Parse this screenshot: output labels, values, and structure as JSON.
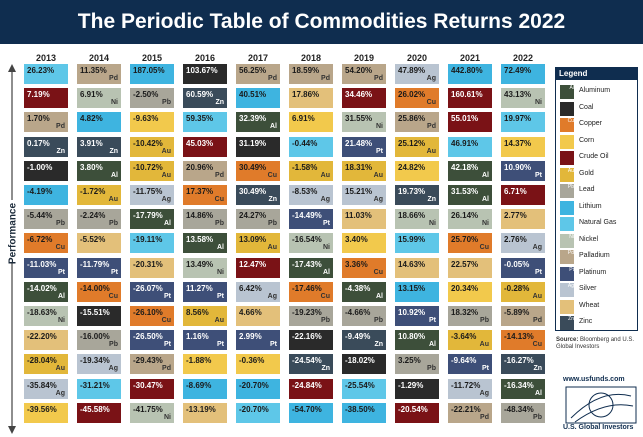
{
  "title": "The Periodic Table of Commodities Returns 2022",
  "axis_label": "Performance",
  "commodities": {
    "Aluminum": {
      "symbol": "Al",
      "color": "#3d4f3a",
      "icon": "aluminum-icon"
    },
    "Coal": {
      "symbol": "",
      "color": "#2a2a2a",
      "icon": "coal-icon"
    },
    "Copper": {
      "symbol": "Cu",
      "color": "#e07b2a",
      "icon": "copper-icon"
    },
    "Corn": {
      "symbol": "",
      "color": "#f2c94c",
      "icon": "corn-icon"
    },
    "Crude Oil": {
      "symbol": "",
      "color": "#7a1216",
      "icon": "oil-drop-icon"
    },
    "Gold": {
      "symbol": "Au",
      "color": "#e2b73a",
      "icon": "gold-icon"
    },
    "Lead": {
      "symbol": "Pb",
      "color": "#a8a69a",
      "icon": "lead-icon"
    },
    "Lithium": {
      "symbol": "",
      "color": "#3eb4e0",
      "icon": "battery-icon"
    },
    "Natural Gas": {
      "symbol": "",
      "color": "#5ec7e8",
      "icon": "flame-icon"
    },
    "Nickel": {
      "symbol": "Ni",
      "color": "#b8c3b2",
      "icon": "nickel-icon"
    },
    "Palladium": {
      "symbol": "Pd",
      "color": "#b9a68a",
      "icon": "palladium-icon"
    },
    "Platinum": {
      "symbol": "Pt",
      "color": "#3e4f78",
      "icon": "platinum-icon"
    },
    "Silver": {
      "symbol": "Ag",
      "color": "#b9c4d1",
      "icon": "silver-icon"
    },
    "Wheat": {
      "symbol": "",
      "color": "#e3c07a",
      "icon": "wheat-icon"
    },
    "Zinc": {
      "symbol": "Zn",
      "color": "#3a4b5a",
      "icon": "zinc-icon"
    }
  },
  "legend": {
    "title": "Legend",
    "items": [
      "Aluminum",
      "Coal",
      "Copper",
      "Corn",
      "Crude Oil",
      "Gold",
      "Lead",
      "Lithium",
      "Natural Gas",
      "Nickel",
      "Palladium",
      "Platinum",
      "Silver",
      "Wheat",
      "Zinc"
    ]
  },
  "source": {
    "label": "Source:",
    "text": "Bloomberg and U.S. Global Investors"
  },
  "url": "www.usfunds.com",
  "company": "U.S. Global Investors",
  "chart_data": {
    "type": "table",
    "title": "The Periodic Table of Commodities Returns 2022",
    "ylabel": "Performance",
    "years": [
      "2013",
      "2014",
      "2015",
      "2016",
      "2017",
      "2018",
      "2019",
      "2020",
      "2021",
      "2022"
    ],
    "columns": [
      {
        "year": "2013",
        "cells": [
          {
            "c": "Natural Gas",
            "v": "26.23%"
          },
          {
            "c": "Crude Oil",
            "v": "7.19%"
          },
          {
            "c": "Palladium",
            "v": "1.70%"
          },
          {
            "c": "Zinc",
            "v": "0.17%"
          },
          {
            "c": "Coal",
            "v": "-1.00%"
          },
          {
            "c": "Lithium",
            "v": "-4.19%"
          },
          {
            "c": "Lead",
            "v": "-5.44%"
          },
          {
            "c": "Copper",
            "v": "-6.72%"
          },
          {
            "c": "Platinum",
            "v": "-11.03%"
          },
          {
            "c": "Aluminum",
            "v": "-14.02%"
          },
          {
            "c": "Nickel",
            "v": "-18.63%"
          },
          {
            "c": "Wheat",
            "v": "-22.20%"
          },
          {
            "c": "Gold",
            "v": "-28.04%"
          },
          {
            "c": "Silver",
            "v": "-35.84%"
          },
          {
            "c": "Corn",
            "v": "-39.56%"
          }
        ]
      },
      {
        "year": "2014",
        "cells": [
          {
            "c": "Palladium",
            "v": "11.35%"
          },
          {
            "c": "Nickel",
            "v": "6.91%"
          },
          {
            "c": "Lithium",
            "v": "4.82%"
          },
          {
            "c": "Zinc",
            "v": "3.91%"
          },
          {
            "c": "Aluminum",
            "v": "3.80%"
          },
          {
            "c": "Gold",
            "v": "-1.72%"
          },
          {
            "c": "Lead",
            "v": "-2.24%"
          },
          {
            "c": "Wheat",
            "v": "-5.52%"
          },
          {
            "c": "Platinum",
            "v": "-11.79%"
          },
          {
            "c": "Copper",
            "v": "-14.00%"
          },
          {
            "c": "Coal",
            "v": "-15.51%"
          },
          {
            "c": "Lead",
            "v": "-16.00%"
          },
          {
            "c": "Silver",
            "v": "-19.34%"
          },
          {
            "c": "Natural Gas",
            "v": "-31.21%"
          },
          {
            "c": "Crude Oil",
            "v": "-45.58%"
          }
        ]
      },
      {
        "year": "2015",
        "cells": [
          {
            "c": "Lithium",
            "v": "187.05%"
          },
          {
            "c": "Lead",
            "v": "-2.50%"
          },
          {
            "c": "Corn",
            "v": "-9.63%"
          },
          {
            "c": "Gold",
            "v": "-10.42%"
          },
          {
            "c": "Gold",
            "v": "-10.72%"
          },
          {
            "c": "Silver",
            "v": "-11.75%"
          },
          {
            "c": "Aluminum",
            "v": "-17.79%"
          },
          {
            "c": "Natural Gas",
            "v": "-19.11%"
          },
          {
            "c": "Wheat",
            "v": "-20.31%"
          },
          {
            "c": "Platinum",
            "v": "-26.07%"
          },
          {
            "c": "Copper",
            "v": "-26.10%"
          },
          {
            "c": "Platinum",
            "v": "-26.50%"
          },
          {
            "c": "Palladium",
            "v": "-29.43%"
          },
          {
            "c": "Crude Oil",
            "v": "-30.47%"
          },
          {
            "c": "Nickel",
            "v": "-41.75%"
          }
        ]
      },
      {
        "year": "2016",
        "cells": [
          {
            "c": "Coal",
            "v": "103.67%"
          },
          {
            "c": "Zinc",
            "v": "60.59%"
          },
          {
            "c": "Natural Gas",
            "v": "59.35%"
          },
          {
            "c": "Crude Oil",
            "v": "45.03%"
          },
          {
            "c": "Palladium",
            "v": "20.96%"
          },
          {
            "c": "Copper",
            "v": "17.37%"
          },
          {
            "c": "Lead",
            "v": "14.86%"
          },
          {
            "c": "Aluminum",
            "v": "13.58%"
          },
          {
            "c": "Nickel",
            "v": "13.49%"
          },
          {
            "c": "Platinum",
            "v": "11.27%"
          },
          {
            "c": "Gold",
            "v": "8.56%"
          },
          {
            "c": "Platinum",
            "v": "1.16%"
          },
          {
            "c": "Corn",
            "v": "-1.88%"
          },
          {
            "c": "Lithium",
            "v": "-8.69%"
          },
          {
            "c": "Wheat",
            "v": "-13.19%"
          }
        ]
      },
      {
        "year": "2017",
        "cells": [
          {
            "c": "Palladium",
            "v": "56.25%"
          },
          {
            "c": "Lithium",
            "v": "40.51%"
          },
          {
            "c": "Aluminum",
            "v": "32.39%"
          },
          {
            "c": "Coal",
            "v": "31.19%"
          },
          {
            "c": "Copper",
            "v": "30.49%"
          },
          {
            "c": "Zinc",
            "v": "30.49%"
          },
          {
            "c": "Lead",
            "v": "24.27%"
          },
          {
            "c": "Gold",
            "v": "13.09%"
          },
          {
            "c": "Crude Oil",
            "v": "12.47%"
          },
          {
            "c": "Silver",
            "v": "6.42%"
          },
          {
            "c": "Wheat",
            "v": "4.66%"
          },
          {
            "c": "Platinum",
            "v": "2.99%"
          },
          {
            "c": "Corn",
            "v": "-0.36%"
          },
          {
            "c": "Lithium",
            "v": "-20.70%"
          },
          {
            "c": "Natural Gas",
            "v": "-20.70%"
          }
        ]
      },
      {
        "year": "2018",
        "cells": [
          {
            "c": "Palladium",
            "v": "18.59%"
          },
          {
            "c": "Wheat",
            "v": "17.86%"
          },
          {
            "c": "Corn",
            "v": "6.91%"
          },
          {
            "c": "Natural Gas",
            "v": "-0.44%"
          },
          {
            "c": "Gold",
            "v": "-1.58%"
          },
          {
            "c": "Silver",
            "v": "-8.53%"
          },
          {
            "c": "Platinum",
            "v": "-14.49%"
          },
          {
            "c": "Nickel",
            "v": "-16.54%"
          },
          {
            "c": "Aluminum",
            "v": "-17.43%"
          },
          {
            "c": "Copper",
            "v": "-17.46%"
          },
          {
            "c": "Lead",
            "v": "-19.23%"
          },
          {
            "c": "Coal",
            "v": "-22.16%"
          },
          {
            "c": "Zinc",
            "v": "-24.54%"
          },
          {
            "c": "Crude Oil",
            "v": "-24.84%"
          },
          {
            "c": "Lithium",
            "v": "-54.70%"
          }
        ]
      },
      {
        "year": "2019",
        "cells": [
          {
            "c": "Palladium",
            "v": "54.20%"
          },
          {
            "c": "Crude Oil",
            "v": "34.46%"
          },
          {
            "c": "Nickel",
            "v": "31.55%"
          },
          {
            "c": "Platinum",
            "v": "21.48%"
          },
          {
            "c": "Gold",
            "v": "18.31%"
          },
          {
            "c": "Silver",
            "v": "15.21%"
          },
          {
            "c": "Wheat",
            "v": "11.03%"
          },
          {
            "c": "Corn",
            "v": "3.40%"
          },
          {
            "c": "Copper",
            "v": "3.36%"
          },
          {
            "c": "Aluminum",
            "v": "-4.38%"
          },
          {
            "c": "Lead",
            "v": "-4.66%"
          },
          {
            "c": "Zinc",
            "v": "-9.49%"
          },
          {
            "c": "Coal",
            "v": "-18.02%"
          },
          {
            "c": "Natural Gas",
            "v": "-25.54%"
          },
          {
            "c": "Lithium",
            "v": "-38.50%"
          }
        ]
      },
      {
        "year": "2020",
        "cells": [
          {
            "c": "Silver",
            "v": "47.89%"
          },
          {
            "c": "Copper",
            "v": "26.02%"
          },
          {
            "c": "Palladium",
            "v": "25.86%"
          },
          {
            "c": "Gold",
            "v": "25.12%"
          },
          {
            "c": "Corn",
            "v": "24.82%"
          },
          {
            "c": "Zinc",
            "v": "19.73%"
          },
          {
            "c": "Nickel",
            "v": "18.66%"
          },
          {
            "c": "Natural Gas",
            "v": "15.99%"
          },
          {
            "c": "Wheat",
            "v": "14.63%"
          },
          {
            "c": "Lithium",
            "v": "13.15%"
          },
          {
            "c": "Platinum",
            "v": "10.92%"
          },
          {
            "c": "Aluminum",
            "v": "10.80%"
          },
          {
            "c": "Lead",
            "v": "3.25%"
          },
          {
            "c": "Coal",
            "v": "-1.29%"
          },
          {
            "c": "Crude Oil",
            "v": "-20.54%"
          }
        ]
      },
      {
        "year": "2021",
        "cells": [
          {
            "c": "Lithium",
            "v": "442.80%"
          },
          {
            "c": "Crude Oil",
            "v": "160.61%"
          },
          {
            "c": "Crude Oil",
            "v": "55.01%"
          },
          {
            "c": "Natural Gas",
            "v": "46.91%"
          },
          {
            "c": "Aluminum",
            "v": "42.18%"
          },
          {
            "c": "Aluminum",
            "v": "31.53%"
          },
          {
            "c": "Nickel",
            "v": "26.14%"
          },
          {
            "c": "Copper",
            "v": "25.70%"
          },
          {
            "c": "Wheat",
            "v": "22.57%"
          },
          {
            "c": "Corn",
            "v": "20.34%"
          },
          {
            "c": "Lead",
            "v": "18.32%"
          },
          {
            "c": "Gold",
            "v": "-3.64%"
          },
          {
            "c": "Platinum",
            "v": "-9.64%"
          },
          {
            "c": "Silver",
            "v": "-11.72%"
          },
          {
            "c": "Palladium",
            "v": "-22.21%"
          }
        ]
      },
      {
        "year": "2022",
        "cells": [
          {
            "c": "Lithium",
            "v": "72.49%"
          },
          {
            "c": "Nickel",
            "v": "43.13%"
          },
          {
            "c": "Natural Gas",
            "v": "19.97%"
          },
          {
            "c": "Corn",
            "v": "14.37%"
          },
          {
            "c": "Platinum",
            "v": "10.90%"
          },
          {
            "c": "Crude Oil",
            "v": "6.71%"
          },
          {
            "c": "Wheat",
            "v": "2.77%"
          },
          {
            "c": "Silver",
            "v": "2.76%"
          },
          {
            "c": "Pt",
            "v": "-0.05%"
          },
          {
            "c": "Gold",
            "v": "-0.28%"
          },
          {
            "c": "Palladium",
            "v": "-5.89%"
          },
          {
            "c": "Copper",
            "v": "-14.13%"
          },
          {
            "c": "Zinc",
            "v": "-16.27%"
          },
          {
            "c": "Aluminum",
            "v": "-16.34%"
          },
          {
            "c": "Lead",
            "v": "-48.34%"
          }
        ]
      }
    ]
  }
}
